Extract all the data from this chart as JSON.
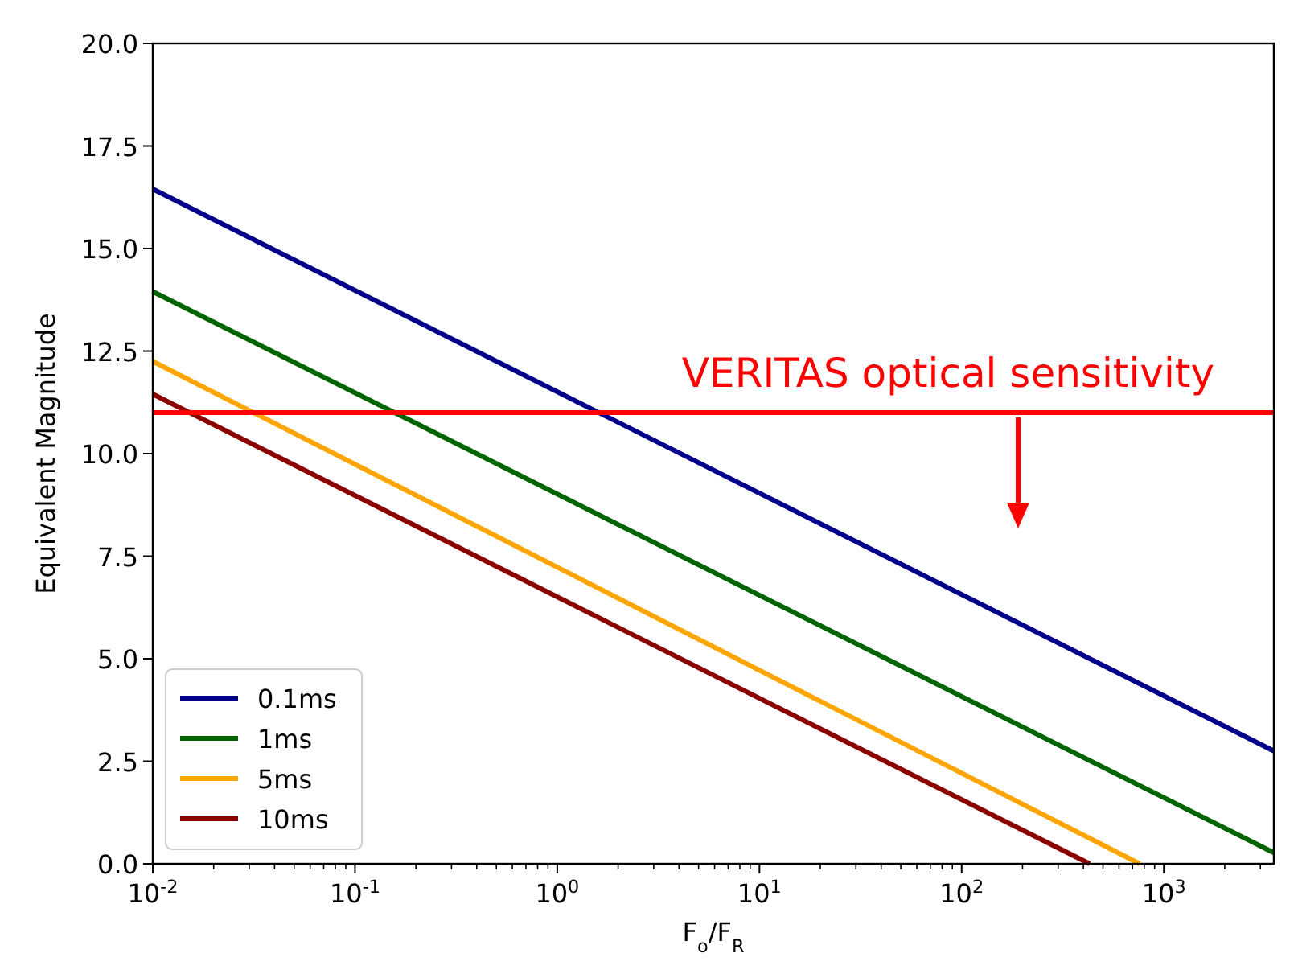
{
  "chart_data": {
    "type": "line",
    "xlabel": "F$_{o}$/F$_{R}$",
    "ylabel": "Equivalent Magnitude",
    "log": "x",
    "xlim": [
      0.01,
      3500
    ],
    "ylim": [
      0,
      20
    ],
    "xticks": [
      {
        "value": 0.01,
        "label": "10$^{-2}$"
      },
      {
        "value": 0.02,
        "label": null
      },
      {
        "value": 0.03,
        "label": null
      },
      {
        "value": 0.04,
        "label": null
      },
      {
        "value": 0.05,
        "label": null
      },
      {
        "value": 0.06,
        "label": null
      },
      {
        "value": 0.07,
        "label": null
      },
      {
        "value": 0.08,
        "label": null
      },
      {
        "value": 0.09,
        "label": null
      },
      {
        "value": 0.1,
        "label": "10$^{-1}$"
      },
      {
        "value": 0.2,
        "label": null
      },
      {
        "value": 0.3,
        "label": null
      },
      {
        "value": 0.4,
        "label": null
      },
      {
        "value": 0.5,
        "label": null
      },
      {
        "value": 0.6,
        "label": null
      },
      {
        "value": 0.7,
        "label": null
      },
      {
        "value": 0.8,
        "label": null
      },
      {
        "value": 0.9,
        "label": null
      },
      {
        "value": 1,
        "label": "10$^{0}$"
      },
      {
        "value": 2,
        "label": null
      },
      {
        "value": 3,
        "label": null
      },
      {
        "value": 4,
        "label": null
      },
      {
        "value": 5,
        "label": null
      },
      {
        "value": 6,
        "label": null
      },
      {
        "value": 7,
        "label": null
      },
      {
        "value": 8,
        "label": null
      },
      {
        "value": 9,
        "label": null
      },
      {
        "value": 10,
        "label": "10$^{1}$"
      },
      {
        "value": 20,
        "label": null
      },
      {
        "value": 30,
        "label": null
      },
      {
        "value": 40,
        "label": null
      },
      {
        "value": 50,
        "label": null
      },
      {
        "value": 60,
        "label": null
      },
      {
        "value": 70,
        "label": null
      },
      {
        "value": 80,
        "label": null
      },
      {
        "value": 90,
        "label": null
      },
      {
        "value": 100,
        "label": "10$^{2}$"
      },
      {
        "value": 200,
        "label": null
      },
      {
        "value": 300,
        "label": null
      },
      {
        "value": 400,
        "label": null
      },
      {
        "value": 500,
        "label": null
      },
      {
        "value": 600,
        "label": null
      },
      {
        "value": 700,
        "label": null
      },
      {
        "value": 800,
        "label": null
      },
      {
        "value": 900,
        "label": null
      },
      {
        "value": 1000,
        "label": "10$^{3}$"
      },
      {
        "value": 2000,
        "label": null
      },
      {
        "value": 3000,
        "label": null
      }
    ],
    "yticks": [
      {
        "value": 0,
        "label": "0.0"
      },
      {
        "value": 2.5,
        "label": "2.5"
      },
      {
        "value": 5,
        "label": "5.0"
      },
      {
        "value": 7.5,
        "label": "7.5"
      },
      {
        "value": 10,
        "label": "10.0"
      },
      {
        "value": 12.5,
        "label": "12.5"
      },
      {
        "value": 15,
        "label": "15.0"
      },
      {
        "value": 17.5,
        "label": "17.5"
      },
      {
        "value": 20,
        "label": "20.0"
      }
    ],
    "series": [
      {
        "name": "0.1ms",
        "color": "#00008b",
        "x": [
          0.01,
          3500
        ],
        "values": [
          16.45,
          2.75
        ]
      },
      {
        "name": "1ms",
        "color": "#006400",
        "x": [
          0.01,
          3500
        ],
        "values": [
          13.95,
          0.27
        ]
      },
      {
        "name": "5ms",
        "color": "#ffa500",
        "x": [
          0.01,
          760
        ],
        "values": [
          12.25,
          0
        ]
      },
      {
        "name": "10ms",
        "color": "#8b0000",
        "x": [
          0.01,
          430
        ],
        "values": [
          11.45,
          0
        ]
      }
    ],
    "ref_lines": [
      {
        "axis": "y",
        "value": 11,
        "label": "VERITAS optical sensitivity",
        "color": "#ff0000"
      }
    ],
    "legend": "bottom left",
    "grid": false
  }
}
